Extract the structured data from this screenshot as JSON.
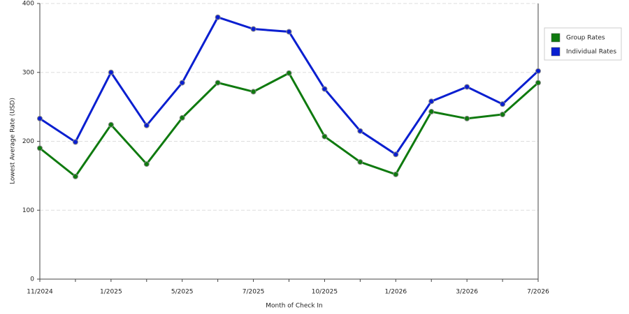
{
  "chart_data": {
    "type": "line",
    "x_label": "Month of Check In",
    "y_label": "Lowest Average Rate (USD)",
    "categories": [
      "11/2024",
      null,
      "1/2025",
      null,
      "5/2025",
      null,
      "7/2025",
      null,
      "10/2025",
      null,
      "1/2026",
      null,
      "3/2026",
      null,
      "7/2026"
    ],
    "series": [
      {
        "name": "Group Rates",
        "color": "#0f7a0f",
        "values": [
          190,
          149,
          224,
          167,
          234,
          285,
          272,
          299,
          207,
          170,
          152,
          243,
          233,
          239,
          285
        ]
      },
      {
        "name": "Individual Rates",
        "color": "#0a1fd0",
        "values": [
          233,
          199,
          300,
          223,
          285,
          380,
          363,
          359,
          276,
          215,
          181,
          258,
          279,
          254,
          302
        ]
      }
    ],
    "ylim": [
      0,
      400
    ],
    "yticks": [
      0,
      100,
      200,
      300,
      400
    ],
    "grid": true,
    "legend": "right"
  }
}
